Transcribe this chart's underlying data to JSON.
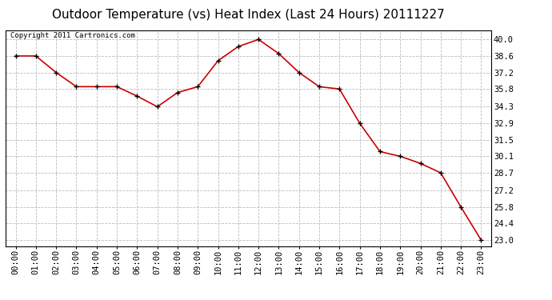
{
  "title": "Outdoor Temperature (vs) Heat Index (Last 24 Hours) 20111227",
  "copyright_text": "Copyright 2011 Cartronics.com",
  "x_labels": [
    "00:00",
    "01:00",
    "02:00",
    "03:00",
    "04:00",
    "05:00",
    "06:00",
    "07:00",
    "08:00",
    "09:00",
    "10:00",
    "11:00",
    "12:00",
    "13:00",
    "14:00",
    "15:00",
    "16:00",
    "17:00",
    "18:00",
    "19:00",
    "20:00",
    "21:00",
    "22:00",
    "23:00"
  ],
  "y_values": [
    38.6,
    38.6,
    37.2,
    36.0,
    36.0,
    36.0,
    35.2,
    34.3,
    35.5,
    36.0,
    38.2,
    39.4,
    40.0,
    38.8,
    37.2,
    36.0,
    35.8,
    32.9,
    30.5,
    30.1,
    29.5,
    28.7,
    25.8,
    23.0
  ],
  "y_ticks": [
    23.0,
    24.4,
    25.8,
    27.2,
    28.7,
    30.1,
    31.5,
    32.9,
    34.3,
    35.8,
    37.2,
    38.6,
    40.0
  ],
  "ylim": [
    22.5,
    40.8
  ],
  "line_color": "#cc0000",
  "marker_color": "#000000",
  "bg_color": "#ffffff",
  "grid_color": "#bbbbbb",
  "title_fontsize": 11,
  "copyright_fontsize": 6.5,
  "tick_fontsize": 7.5
}
